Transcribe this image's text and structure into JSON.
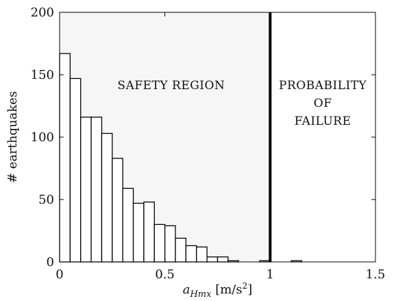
{
  "chart_data": {
    "type": "bar",
    "title": "",
    "xlabel": {
      "var": "a",
      "sub": "Hmx",
      "unit": "[m/s",
      "sup": "2",
      "close": "]"
    },
    "ylabel": "# earthquakes",
    "xlim": [
      0,
      1.5
    ],
    "ylim": [
      0,
      200
    ],
    "xticks": [
      0,
      0.5,
      1,
      1.5
    ],
    "xtick_labels": [
      "0",
      "0.5",
      "1",
      "1.5"
    ],
    "yticks": [
      0,
      50,
      100,
      150,
      200
    ],
    "ytick_labels": [
      "0",
      "50",
      "100",
      "150",
      "200"
    ],
    "grid": false,
    "bin_width": 0.05,
    "bins": [
      {
        "x0": 0.0,
        "value": 167
      },
      {
        "x0": 0.05,
        "value": 147
      },
      {
        "x0": 0.1,
        "value": 116
      },
      {
        "x0": 0.15,
        "value": 116
      },
      {
        "x0": 0.2,
        "value": 103
      },
      {
        "x0": 0.25,
        "value": 83
      },
      {
        "x0": 0.3,
        "value": 59
      },
      {
        "x0": 0.35,
        "value": 47
      },
      {
        "x0": 0.4,
        "value": 48
      },
      {
        "x0": 0.45,
        "value": 30
      },
      {
        "x0": 0.5,
        "value": 29
      },
      {
        "x0": 0.55,
        "value": 19
      },
      {
        "x0": 0.6,
        "value": 13
      },
      {
        "x0": 0.65,
        "value": 12
      },
      {
        "x0": 0.7,
        "value": 4
      },
      {
        "x0": 0.75,
        "value": 4
      },
      {
        "x0": 0.8,
        "value": 1
      },
      {
        "x0": 0.85,
        "value": 0
      },
      {
        "x0": 0.9,
        "value": 0
      },
      {
        "x0": 0.95,
        "value": 1
      },
      {
        "x0": 1.0,
        "value": 0
      },
      {
        "x0": 1.05,
        "value": 0
      },
      {
        "x0": 1.1,
        "value": 1
      }
    ],
    "threshold_x": 1,
    "regions": {
      "safety": [
        "SAFETY REGION"
      ],
      "failure": [
        "PROBABILITY",
        "OF",
        "FAILURE"
      ]
    },
    "colors": {
      "safety_bg": "#f6f6f6",
      "failure_bg": "#ffffff",
      "bar_fill": "#ffffff",
      "bar_stroke": "#000000",
      "threshold": "#000000"
    }
  }
}
